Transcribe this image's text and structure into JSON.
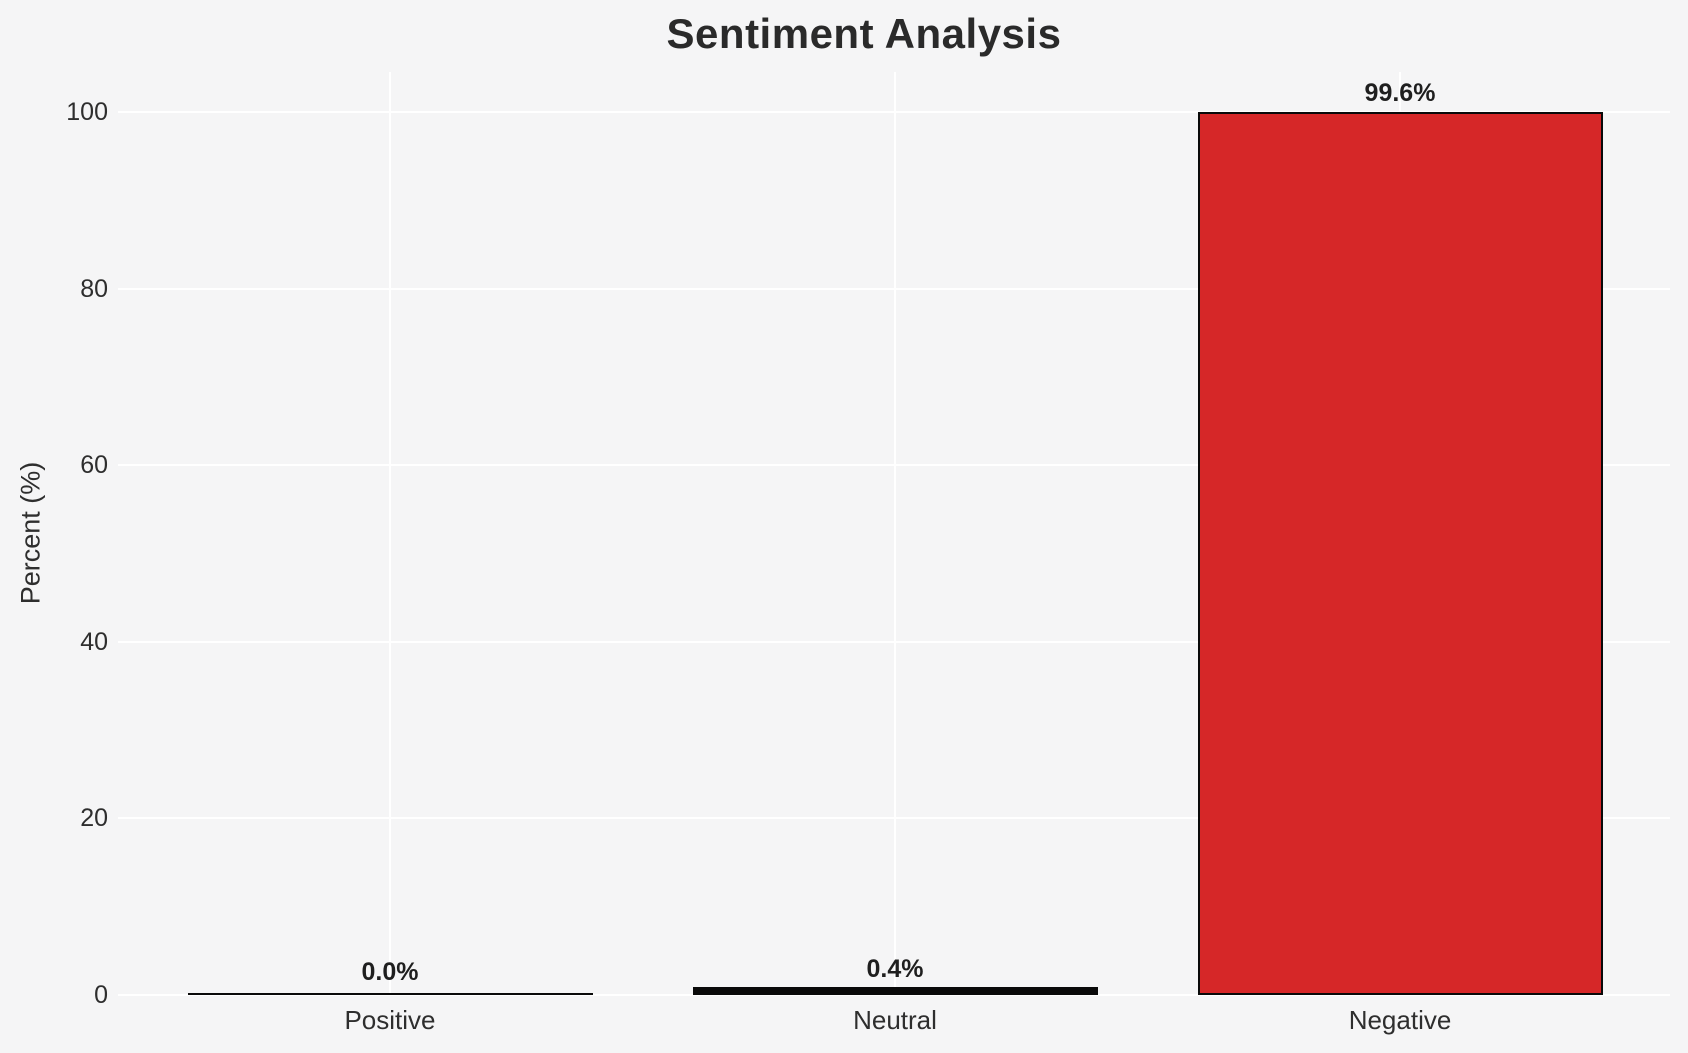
{
  "chart_data": {
    "type": "bar",
    "title": "Sentiment Analysis",
    "ylabel": "Percent (%)",
    "xlabel": "",
    "categories": [
      "Positive",
      "Neutral",
      "Negative"
    ],
    "values": [
      0.0,
      0.4,
      99.6
    ],
    "bar_labels": [
      "0.0%",
      "0.4%",
      "99.6%"
    ],
    "yticks": [
      0,
      20,
      40,
      60,
      80,
      100
    ],
    "ylim": [
      0,
      104.5
    ],
    "grid": true,
    "legend_position": "none",
    "colors": {
      "figure_background": "#f5f5f6",
      "gridline": "#ffffff",
      "text": "#2e2e2e",
      "bar_edge": "#0a0a0a",
      "bar_fills": [
        "#0a0a0a",
        "#0a0a0a",
        "#d62728"
      ]
    }
  }
}
